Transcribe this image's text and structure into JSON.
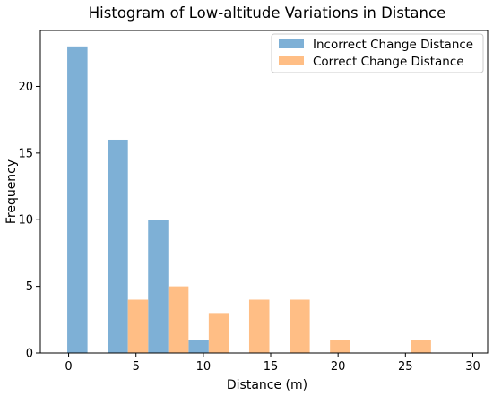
{
  "chart_data": {
    "type": "bar",
    "title": "Histogram of Low-altitude Variations in Distance",
    "xlabel": "Distance (m)",
    "ylabel": "Frequency",
    "xlim": [
      -2.1,
      31.1
    ],
    "ylim": [
      0,
      24.2
    ],
    "xticks": [
      0,
      5,
      10,
      15,
      20,
      25,
      30
    ],
    "yticks": [
      0,
      5,
      10,
      15,
      20
    ],
    "bin_edges": [
      -0.1,
      2.9,
      5.9,
      8.9,
      11.9,
      14.9,
      17.9,
      20.9,
      23.9,
      26.9,
      29.9
    ],
    "legend_position": "upper-right",
    "series": [
      {
        "name": "Incorrect Change Distance",
        "color": "#7EB0D6",
        "values": [
          23,
          16,
          10,
          1,
          0,
          0,
          0,
          0,
          0,
          0
        ]
      },
      {
        "name": "Correct Change Distance",
        "color": "#FFBE85",
        "values": [
          0,
          4,
          5,
          3,
          4,
          4,
          1,
          0,
          1,
          0
        ]
      }
    ]
  }
}
